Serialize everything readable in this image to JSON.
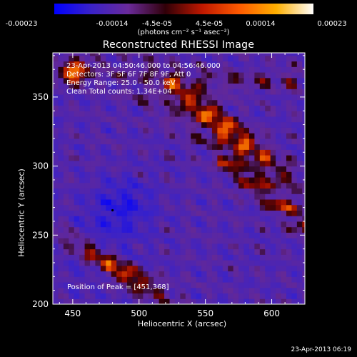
{
  "colorbar": {
    "ticks": [
      "-0.00023",
      "-0.00014",
      "-4.5e-05",
      "4.5e-05",
      "0.00014",
      "0.00023"
    ],
    "unit": "(photons cm⁻² s⁻¹ asec⁻²)",
    "colors": [
      "#0000ff",
      "#3a22c8",
      "#6a2a9a",
      "#300008",
      "#c01800",
      "#ff5a00",
      "#ffb000",
      "#ffffff"
    ]
  },
  "chart_data": {
    "type": "heatmap",
    "title": "Reconstructed RHESSI Image",
    "xlabel": "Heliocentric X (arcsec)",
    "ylabel": "Heliocentric Y (arcsec)",
    "xlim": [
      435,
      625
    ],
    "ylim": [
      200,
      382
    ],
    "x_ticks": [
      450,
      500,
      550,
      600
    ],
    "y_ticks": [
      200,
      250,
      300,
      350
    ],
    "clim": [
      -0.00023,
      0.00023
    ],
    "annotations": [
      "23-Apr-2013 04:50:46.000 to 04:56:46.000",
      "Detectors: 3F 5F 6F 7F 8F 9F, Att 0",
      "Energy Range: 25.0 - 50.0 keV",
      "Clean    Total counts: 1.34E+04"
    ],
    "peak_label": "Position of Peak = [451,368]",
    "peak": [
      451,
      368
    ],
    "marker": [
      480,
      268
    ]
  },
  "footer": "23-Apr-2013 06:19"
}
